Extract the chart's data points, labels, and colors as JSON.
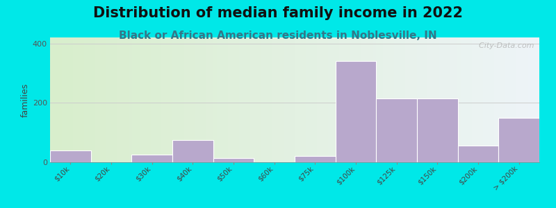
{
  "title": "Distribution of median family income in 2022",
  "subtitle": "Black or African American residents in Noblesville, IN",
  "ylabel": "families",
  "categories": [
    "$10k",
    "$20k",
    "$30k",
    "$40k",
    "$50k",
    "$60k",
    "$75k",
    "$100k",
    "$125k",
    "$150k",
    "$200k",
    "> $200k"
  ],
  "values": [
    40,
    0,
    25,
    75,
    15,
    0,
    22,
    340,
    215,
    215,
    55,
    150
  ],
  "bar_color": "#b8a8cc",
  "background_outer": "#00e8e8",
  "bg_left_color": "#d8eecc",
  "bg_right_color": "#eef4f8",
  "ylim": [
    0,
    420
  ],
  "yticks": [
    0,
    200,
    400
  ],
  "title_fontsize": 15,
  "subtitle_fontsize": 11,
  "ylabel_fontsize": 9,
  "watermark": "  City-Data.com"
}
